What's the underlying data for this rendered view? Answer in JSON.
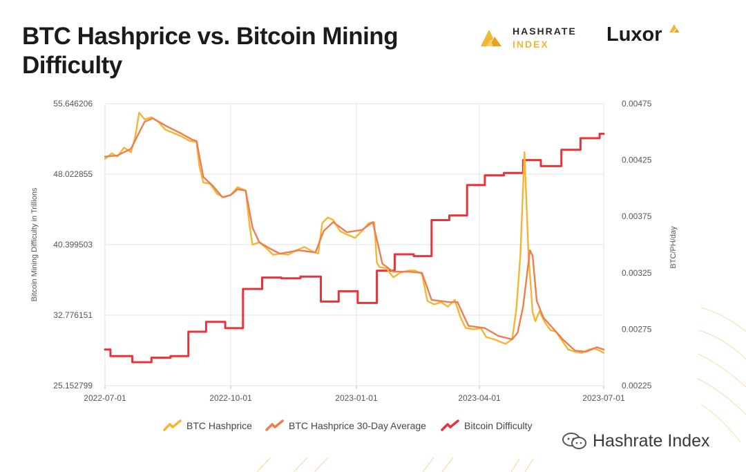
{
  "header": {
    "title": "BTC Hashprice vs. Bitcoin Mining Difficulty",
    "brand_hashrate_line1": "HASHRATE",
    "brand_hashrate_line2": "INDEX",
    "brand_luxor": "Luxor"
  },
  "watermark": {
    "text": "Hashrate Index"
  },
  "colors": {
    "hashprice": "#f2b632",
    "hashprice_avg": "#ee7d4f",
    "difficulty": "#e8333a",
    "grid": "#e3e3e3",
    "title": "#1b1b1b"
  },
  "chart_data": {
    "type": "line",
    "title": "BTC Hashprice vs. Bitcoin Mining Difficulty",
    "y_left_label": "Bitcoin Mining Difficulty in Trillions",
    "y_right_label": "BTC/PH/day",
    "y_left_ticks": [
      "55.646206",
      "48.022855",
      "40.399503",
      "32.776151",
      "25.152799"
    ],
    "y_right_ticks": [
      "0.00475",
      "0.00425",
      "0.00375",
      "0.00325",
      "0.00275",
      "0.00225"
    ],
    "y_left_range": [
      25.152799,
      55.646206
    ],
    "y_right_range": [
      0.00225,
      0.00475
    ],
    "x_ticks": [
      "2022-07-01",
      "2022-10-01",
      "2023-01-01",
      "2023-04-01",
      "2023-07-01"
    ],
    "x_range": [
      "2022-07-01",
      "2023-07-01"
    ],
    "grid": true,
    "legend_position": "bottom",
    "series": [
      {
        "name": "BTC Hashprice",
        "axis": "right",
        "color": "#f2b632",
        "points": [
          [
            "2022-07-01",
            0.00426
          ],
          [
            "2022-07-06",
            0.00431
          ],
          [
            "2022-07-10",
            0.00428
          ],
          [
            "2022-07-15",
            0.00436
          ],
          [
            "2022-07-20",
            0.00432
          ],
          [
            "2022-07-23",
            0.00445
          ],
          [
            "2022-07-26",
            0.00467
          ],
          [
            "2022-07-30",
            0.00461
          ],
          [
            "2022-08-04",
            0.00463
          ],
          [
            "2022-08-09",
            0.00459
          ],
          [
            "2022-08-14",
            0.00452
          ],
          [
            "2022-08-20",
            0.00449
          ],
          [
            "2022-08-26",
            0.00446
          ],
          [
            "2022-09-01",
            0.00442
          ],
          [
            "2022-09-06",
            0.00441
          ],
          [
            "2022-09-08",
            0.0042
          ],
          [
            "2022-09-11",
            0.00405
          ],
          [
            "2022-09-16",
            0.00404
          ],
          [
            "2022-09-21",
            0.00395
          ],
          [
            "2022-09-26",
            0.00392
          ],
          [
            "2022-10-01",
            0.00394
          ],
          [
            "2022-10-06",
            0.00401
          ],
          [
            "2022-10-12",
            0.00398
          ],
          [
            "2022-10-15",
            0.00365
          ],
          [
            "2022-10-17",
            0.0035
          ],
          [
            "2022-10-22",
            0.00352
          ],
          [
            "2022-10-27",
            0.00347
          ],
          [
            "2022-11-01",
            0.00341
          ],
          [
            "2022-11-06",
            0.00342
          ],
          [
            "2022-11-12",
            0.00341
          ],
          [
            "2022-11-18",
            0.00345
          ],
          [
            "2022-11-24",
            0.00348
          ],
          [
            "2022-11-30",
            0.00344
          ],
          [
            "2022-12-04",
            0.00342
          ],
          [
            "2022-12-07",
            0.00369
          ],
          [
            "2022-12-11",
            0.00374
          ],
          [
            "2022-12-15",
            0.00372
          ],
          [
            "2022-12-20",
            0.00362
          ],
          [
            "2022-12-25",
            0.00359
          ],
          [
            "2022-12-31",
            0.00356
          ],
          [
            "2023-01-05",
            0.00362
          ],
          [
            "2023-01-10",
            0.00369
          ],
          [
            "2023-01-14",
            0.0037
          ],
          [
            "2023-01-16",
            0.00334
          ],
          [
            "2023-01-18",
            0.0033
          ],
          [
            "2023-01-23",
            0.00329
          ],
          [
            "2023-01-28",
            0.00321
          ],
          [
            "2023-02-02",
            0.00325
          ],
          [
            "2023-02-08",
            0.00327
          ],
          [
            "2023-02-13",
            0.00327
          ],
          [
            "2023-02-18",
            0.00324
          ],
          [
            "2023-02-22",
            0.003
          ],
          [
            "2023-02-27",
            0.00297
          ],
          [
            "2023-03-04",
            0.00299
          ],
          [
            "2023-03-09",
            0.00295
          ],
          [
            "2023-03-14",
            0.00301
          ],
          [
            "2023-03-18",
            0.00286
          ],
          [
            "2023-03-22",
            0.00276
          ],
          [
            "2023-03-28",
            0.00275
          ],
          [
            "2023-04-02",
            0.00276
          ],
          [
            "2023-04-06",
            0.00268
          ],
          [
            "2023-04-12",
            0.00266
          ],
          [
            "2023-04-16",
            0.00264
          ],
          [
            "2023-04-20",
            0.00262
          ],
          [
            "2023-04-25",
            0.00266
          ],
          [
            "2023-04-28",
            0.00292
          ],
          [
            "2023-05-01",
            0.0034
          ],
          [
            "2023-05-04",
            0.00432
          ],
          [
            "2023-05-07",
            0.0034
          ],
          [
            "2023-05-10",
            0.0029
          ],
          [
            "2023-05-12",
            0.00282
          ],
          [
            "2023-05-15",
            0.00291
          ],
          [
            "2023-05-19",
            0.00281
          ],
          [
            "2023-05-23",
            0.00274
          ],
          [
            "2023-05-27",
            0.00273
          ],
          [
            "2023-06-01",
            0.00264
          ],
          [
            "2023-06-05",
            0.00257
          ],
          [
            "2023-06-10",
            0.00255
          ],
          [
            "2023-06-15",
            0.00254
          ],
          [
            "2023-06-20",
            0.00257
          ],
          [
            "2023-06-24",
            0.00258
          ],
          [
            "2023-06-28",
            0.00256
          ],
          [
            "2023-07-01",
            0.00254
          ]
        ]
      },
      {
        "name": "BTC Hashprice 30-Day Average",
        "axis": "right",
        "color": "#ee7d4f",
        "points": [
          [
            "2022-07-01",
            0.00428
          ],
          [
            "2022-07-10",
            0.00429
          ],
          [
            "2022-07-20",
            0.00435
          ],
          [
            "2022-07-30",
            0.00459
          ],
          [
            "2022-08-05",
            0.00462
          ],
          [
            "2022-08-15",
            0.00455
          ],
          [
            "2022-08-25",
            0.00449
          ],
          [
            "2022-09-03",
            0.00443
          ],
          [
            "2022-09-06",
            0.00442
          ],
          [
            "2022-09-11",
            0.0041
          ],
          [
            "2022-09-18",
            0.00402
          ],
          [
            "2022-09-25",
            0.00392
          ],
          [
            "2022-10-01",
            0.00394
          ],
          [
            "2022-10-06",
            0.00399
          ],
          [
            "2022-10-12",
            0.00398
          ],
          [
            "2022-10-17",
            0.00365
          ],
          [
            "2022-10-22",
            0.00352
          ],
          [
            "2022-10-29",
            0.00347
          ],
          [
            "2022-11-06",
            0.00342
          ],
          [
            "2022-11-20",
            0.00345
          ],
          [
            "2022-12-02",
            0.00343
          ],
          [
            "2022-12-08",
            0.00362
          ],
          [
            "2022-12-15",
            0.0037
          ],
          [
            "2022-12-25",
            0.00361
          ],
          [
            "2023-01-05",
            0.00363
          ],
          [
            "2023-01-13",
            0.0037
          ],
          [
            "2023-01-20",
            0.00333
          ],
          [
            "2023-01-28",
            0.00326
          ],
          [
            "2023-02-08",
            0.00326
          ],
          [
            "2023-02-18",
            0.00325
          ],
          [
            "2023-02-25",
            0.00301
          ],
          [
            "2023-03-10",
            0.00299
          ],
          [
            "2023-03-16",
            0.00299
          ],
          [
            "2023-03-24",
            0.00278
          ],
          [
            "2023-04-05",
            0.00276
          ],
          [
            "2023-04-15",
            0.00269
          ],
          [
            "2023-04-25",
            0.00266
          ],
          [
            "2023-04-29",
            0.00272
          ],
          [
            "2023-05-03",
            0.00295
          ],
          [
            "2023-05-08",
            0.00345
          ],
          [
            "2023-05-10",
            0.0034
          ],
          [
            "2023-05-13",
            0.003
          ],
          [
            "2023-05-18",
            0.00285
          ],
          [
            "2023-05-24",
            0.00277
          ],
          [
            "2023-06-01",
            0.00266
          ],
          [
            "2023-06-10",
            0.00256
          ],
          [
            "2023-06-18",
            0.00255
          ],
          [
            "2023-06-26",
            0.00259
          ],
          [
            "2023-07-01",
            0.00257
          ]
        ]
      },
      {
        "name": "Bitcoin Difficulty",
        "axis": "left",
        "color": "#e8333a",
        "points": [
          [
            "2022-07-01",
            29.06
          ],
          [
            "2022-07-05",
            28.35
          ],
          [
            "2022-07-21",
            27.69
          ],
          [
            "2022-08-04",
            28.17
          ],
          [
            "2022-08-18",
            28.35
          ],
          [
            "2022-08-31",
            30.98
          ],
          [
            "2022-09-13",
            32.05
          ],
          [
            "2022-09-27",
            31.36
          ],
          [
            "2022-10-10",
            35.61
          ],
          [
            "2022-10-24",
            36.84
          ],
          [
            "2022-11-07",
            36.76
          ],
          [
            "2022-11-21",
            36.95
          ],
          [
            "2022-12-06",
            34.24
          ],
          [
            "2022-12-19",
            35.36
          ],
          [
            "2023-01-02",
            34.09
          ],
          [
            "2023-01-16",
            37.59
          ],
          [
            "2023-01-29",
            39.35
          ],
          [
            "2023-02-12",
            39.16
          ],
          [
            "2023-02-25",
            43.05
          ],
          [
            "2023-03-10",
            43.55
          ],
          [
            "2023-03-23",
            46.84
          ],
          [
            "2023-04-05",
            47.89
          ],
          [
            "2023-04-19",
            48.15
          ],
          [
            "2023-05-03",
            49.55
          ],
          [
            "2023-05-16",
            48.89
          ],
          [
            "2023-05-31",
            50.65
          ],
          [
            "2023-06-14",
            51.91
          ],
          [
            "2023-06-28",
            52.39
          ],
          [
            "2023-07-01",
            52.39
          ]
        ]
      }
    ]
  }
}
